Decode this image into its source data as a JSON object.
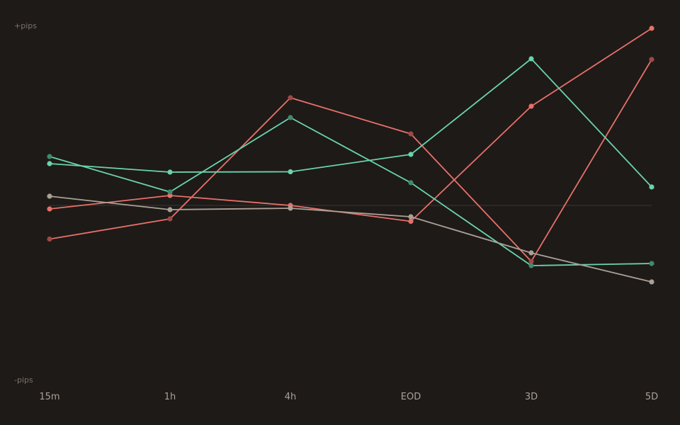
{
  "chart_data": {
    "type": "line",
    "categories": [
      "15m",
      "1h",
      "4h",
      "EOD",
      "3D",
      "5D"
    ],
    "ylabel_top": "+pips",
    "ylabel_bottom": "-pips",
    "ylim": [
      -100,
      100
    ],
    "baseline": 0,
    "grid": false,
    "legend": "none",
    "series": [
      {
        "color": "#e8706a",
        "marker": "#e8706a",
        "values": [
          -2,
          5.6,
          0,
          -9,
          56,
          100
        ]
      },
      {
        "color": "#e8706a",
        "marker": "#9c4a45",
        "values": [
          -19,
          -7.6,
          60.8,
          40.4,
          -31.6,
          82.4
        ]
      },
      {
        "color": "#69d3ae",
        "marker": "#69d3ae",
        "values": [
          23.6,
          18.8,
          19,
          28.8,
          82.8,
          10.4
        ]
      },
      {
        "color": "#69d3ae",
        "marker": "#3f8a6e",
        "values": [
          27.6,
          7.6,
          49.6,
          12.8,
          -34,
          -32.8
        ]
      },
      {
        "color": "#a9a098",
        "marker": "#a9a098",
        "values": [
          5.2,
          -2.4,
          -1.6,
          -6.4,
          -26.8,
          -43.2
        ]
      }
    ]
  }
}
